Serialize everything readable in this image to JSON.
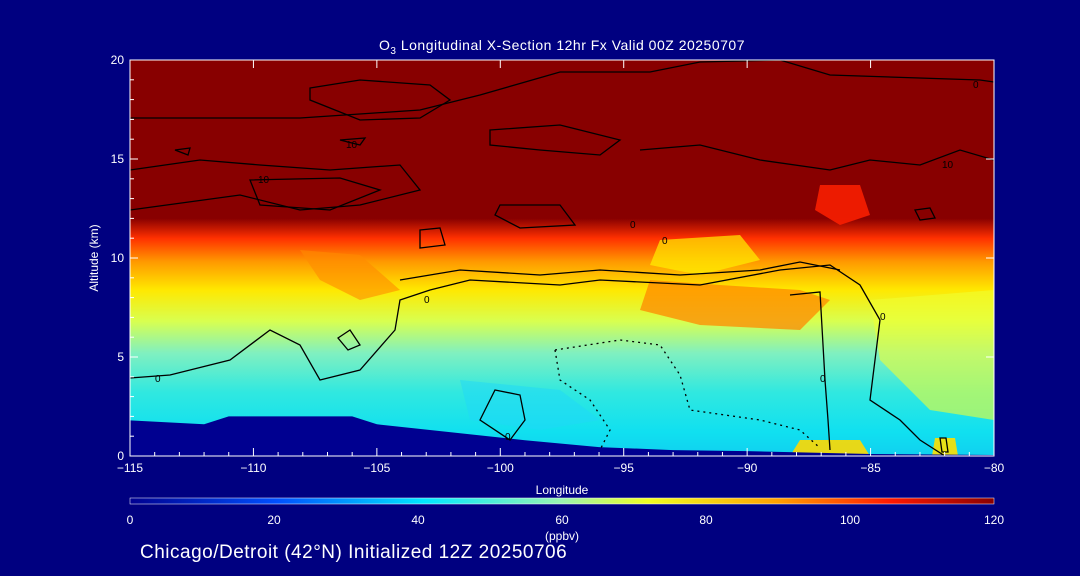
{
  "footer": "Chicago/Detroit (42°N) Initialized 12Z 20250706",
  "chart_data": {
    "type": "heatmap",
    "title_prefix": "O",
    "title_sub": "3",
    "title_rest": " Longitudinal X-Section 12hr  Fx Valid 00Z 20250707",
    "xlabel": "Longitude",
    "ylabel": "Altitude (km)",
    "xlim": [
      -115,
      -80
    ],
    "ylim": [
      0,
      20
    ],
    "xticks": [
      -115,
      -110,
      -105,
      -100,
      -95,
      -90,
      -85,
      -80
    ],
    "xtick_labels": [
      "−115",
      "−110",
      "−105",
      "−100",
      "−95",
      "−90",
      "−85",
      "−80"
    ],
    "yticks": [
      0,
      5,
      10,
      15,
      20
    ],
    "colorbar": {
      "label": "(ppbv)",
      "range": [
        0,
        120
      ],
      "ticks": [
        0,
        20,
        40,
        60,
        80,
        100,
        120
      ]
    },
    "contour_labels": [
      "10",
      "10",
      "10",
      "0",
      "0",
      "0",
      "0",
      "0",
      "0",
      "0",
      "0"
    ],
    "terrain": [
      {
        "lon": -115,
        "alt": 1.8
      },
      {
        "lon": -112,
        "alt": 1.6
      },
      {
        "lon": -111,
        "alt": 2.0
      },
      {
        "lon": -106,
        "alt": 2.0
      },
      {
        "lon": -105,
        "alt": 1.6
      },
      {
        "lon": -102,
        "alt": 1.2
      },
      {
        "lon": -99,
        "alt": 0.8
      },
      {
        "lon": -96,
        "alt": 0.45
      },
      {
        "lon": -93,
        "alt": 0.3
      },
      {
        "lon": -90,
        "alt": 0.25
      },
      {
        "lon": -85,
        "alt": 0.1
      },
      {
        "lon": -80,
        "alt": 0.05
      }
    ]
  }
}
